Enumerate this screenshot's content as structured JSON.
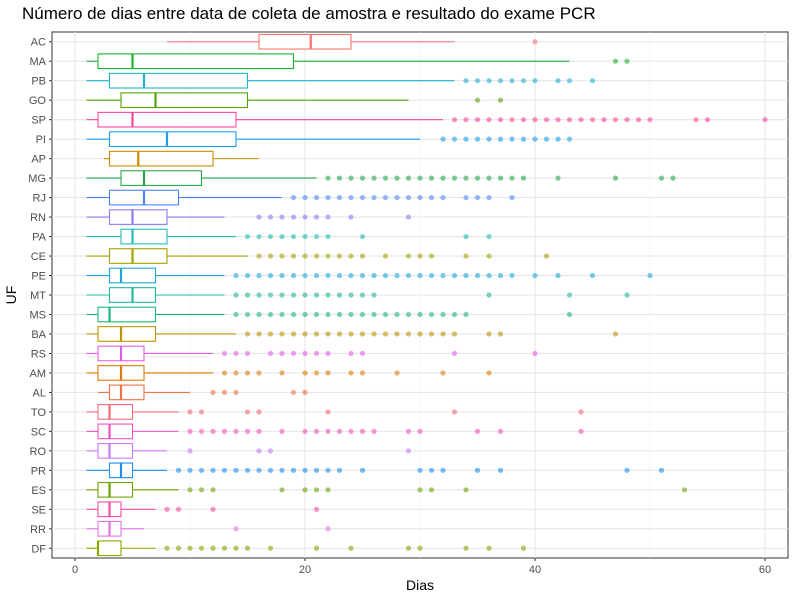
{
  "chart_data": {
    "type": "boxplot",
    "title": "Número de dias entre data de coleta de amostra e resultado do exame PCR",
    "xlabel": "Dias",
    "ylabel": "UF",
    "xlim": [
      -2,
      62
    ],
    "xticks": [
      0,
      20,
      40,
      60
    ],
    "grid": true,
    "legend": "none",
    "categories": [
      "AC",
      "MA",
      "PB",
      "GO",
      "SP",
      "PI",
      "AP",
      "MG",
      "RJ",
      "RN",
      "PA",
      "CE",
      "PE",
      "MT",
      "MS",
      "BA",
      "RS",
      "AM",
      "AL",
      "TO",
      "SC",
      "RO",
      "PR",
      "ES",
      "SE",
      "RR",
      "DF"
    ],
    "series": [
      {
        "uf": "AC",
        "color": "#F8766D",
        "whisker_low": 8,
        "q1": 16,
        "median": 20.5,
        "q3": 24,
        "whisker_high": 33,
        "outliers": [
          40
        ]
      },
      {
        "uf": "MA",
        "color": "#1BB22C",
        "whisker_low": 1,
        "q1": 2,
        "median": 5,
        "q3": 19,
        "whisker_high": 43,
        "outliers": [
          47,
          48
        ]
      },
      {
        "uf": "PB",
        "color": "#1FB3D0",
        "whisker_low": 1,
        "q1": 3,
        "median": 6,
        "q3": 15,
        "whisker_high": 33,
        "outliers": [
          34,
          35,
          36,
          37,
          38,
          39,
          40,
          42,
          43,
          45
        ]
      },
      {
        "uf": "GO",
        "color": "#54A40B",
        "whisker_low": 1,
        "q1": 4,
        "median": 7,
        "q3": 15,
        "whisker_high": 29,
        "outliers": [
          35,
          37
        ]
      },
      {
        "uf": "SP",
        "color": "#F8469D",
        "whisker_low": 1,
        "q1": 2,
        "median": 5,
        "q3": 14,
        "whisker_high": 32,
        "outliers": [
          33,
          34,
          35,
          36,
          37,
          38,
          39,
          40,
          41,
          42,
          43,
          44,
          45,
          46,
          47,
          48,
          49,
          50,
          54,
          55,
          60
        ]
      },
      {
        "uf": "PI",
        "color": "#1E9EEF",
        "whisker_low": 1,
        "q1": 3,
        "median": 8,
        "q3": 14,
        "whisker_high": 30,
        "outliers": [
          32,
          33,
          34,
          35,
          36,
          37,
          38,
          39,
          40,
          41,
          42,
          43
        ]
      },
      {
        "uf": "AP",
        "color": "#CC8A00",
        "whisker_low": 2.5,
        "q1": 3,
        "median": 5.5,
        "q3": 12,
        "whisker_high": 16,
        "outliers": []
      },
      {
        "uf": "MG",
        "color": "#23A94A",
        "whisker_low": 1,
        "q1": 4,
        "median": 6,
        "q3": 11,
        "whisker_high": 21,
        "outliers": [
          22,
          23,
          24,
          25,
          26,
          27,
          28,
          29,
          30,
          31,
          32,
          33,
          34,
          35,
          36,
          37,
          38,
          39,
          42,
          47,
          51,
          52
        ]
      },
      {
        "uf": "RJ",
        "color": "#4C86F6",
        "whisker_low": 1,
        "q1": 3,
        "median": 6,
        "q3": 9,
        "whisker_high": 18,
        "outliers": [
          19,
          20,
          21,
          22,
          23,
          24,
          25,
          26,
          27,
          28,
          29,
          30,
          31,
          32,
          34,
          35,
          36,
          38
        ]
      },
      {
        "uf": "RN",
        "color": "#8E7CF3",
        "whisker_low": 1,
        "q1": 3,
        "median": 5,
        "q3": 8,
        "whisker_high": 13,
        "outliers": [
          16,
          17,
          18,
          19,
          20,
          21,
          22,
          24,
          29
        ]
      },
      {
        "uf": "PA",
        "color": "#1FBEB4",
        "whisker_low": 1,
        "q1": 4,
        "median": 5,
        "q3": 8,
        "whisker_high": 14,
        "outliers": [
          15,
          16,
          17,
          18,
          19,
          20,
          21,
          22,
          25,
          34,
          36
        ]
      },
      {
        "uf": "CE",
        "color": "#A7A200",
        "whisker_low": 1,
        "q1": 3,
        "median": 5,
        "q3": 8,
        "whisker_high": 15,
        "outliers": [
          16,
          17,
          18,
          19,
          20,
          21,
          22,
          23,
          24,
          25,
          27,
          29,
          30,
          31,
          34,
          36,
          41
        ]
      },
      {
        "uf": "PE",
        "color": "#1DA7DF",
        "whisker_low": 1,
        "q1": 3,
        "median": 4,
        "q3": 7,
        "whisker_high": 13,
        "outliers": [
          14,
          15,
          16,
          17,
          18,
          19,
          20,
          21,
          22,
          23,
          24,
          25,
          26,
          27,
          28,
          29,
          30,
          31,
          32,
          33,
          34,
          35,
          36,
          37,
          38,
          40,
          42,
          45,
          50
        ]
      },
      {
        "uf": "MT",
        "color": "#20B89C",
        "whisker_low": 1,
        "q1": 3,
        "median": 5,
        "q3": 7,
        "whisker_high": 13,
        "outliers": [
          14,
          15,
          16,
          17,
          18,
          19,
          20,
          21,
          22,
          23,
          24,
          25,
          26,
          36,
          43,
          48
        ]
      },
      {
        "uf": "MS",
        "color": "#1DB67B",
        "whisker_low": 1,
        "q1": 2,
        "median": 3,
        "q3": 7,
        "whisker_high": 13,
        "outliers": [
          14,
          15,
          16,
          17,
          18,
          19,
          20,
          21,
          22,
          23,
          24,
          25,
          26,
          27,
          28,
          29,
          30,
          31,
          32,
          33,
          34,
          43
        ]
      },
      {
        "uf": "BA",
        "color": "#BB9300",
        "whisker_low": 1,
        "q1": 2,
        "median": 4,
        "q3": 7,
        "whisker_high": 14,
        "outliers": [
          15,
          16,
          17,
          18,
          19,
          20,
          21,
          22,
          23,
          24,
          25,
          26,
          27,
          28,
          29,
          30,
          31,
          32,
          33,
          36,
          37,
          47
        ]
      },
      {
        "uf": "RS",
        "color": "#E35BEA",
        "whisker_low": 1,
        "q1": 2,
        "median": 4,
        "q3": 6,
        "whisker_high": 12,
        "outliers": [
          13,
          14,
          15,
          17,
          18,
          19,
          20,
          21,
          22,
          24,
          25,
          33,
          40
        ]
      },
      {
        "uf": "AM",
        "color": "#E17A05",
        "whisker_low": 1,
        "q1": 2,
        "median": 4,
        "q3": 6,
        "whisker_high": 12,
        "outliers": [
          13,
          14,
          15,
          16,
          18,
          20,
          21,
          22,
          24,
          25,
          28,
          32,
          36
        ]
      },
      {
        "uf": "AL",
        "color": "#ED7244",
        "whisker_low": 2,
        "q1": 3,
        "median": 4,
        "q3": 6,
        "whisker_high": 10,
        "outliers": [
          12,
          13,
          14,
          19,
          20
        ]
      },
      {
        "uf": "TO",
        "color": "#F16B7A",
        "whisker_low": 1,
        "q1": 2,
        "median": 3,
        "q3": 5,
        "whisker_high": 9,
        "outliers": [
          10,
          11,
          15,
          16,
          22,
          33,
          44
        ]
      },
      {
        "uf": "SC",
        "color": "#F552BD",
        "whisker_low": 1,
        "q1": 2,
        "median": 3,
        "q3": 5,
        "whisker_high": 9,
        "outliers": [
          10,
          11,
          12,
          13,
          14,
          15,
          16,
          18,
          20,
          21,
          22,
          23,
          24,
          25,
          26,
          29,
          30,
          35,
          37,
          44
        ]
      },
      {
        "uf": "RO",
        "color": "#C77CFF",
        "whisker_low": 1,
        "q1": 2,
        "median": 3,
        "q3": 5,
        "whisker_high": 8,
        "outliers": [
          10,
          16,
          17,
          29
        ]
      },
      {
        "uf": "PR",
        "color": "#1C8FF0",
        "whisker_low": 1,
        "q1": 3,
        "median": 4,
        "q3": 5,
        "whisker_high": 8,
        "outliers": [
          9,
          10,
          11,
          12,
          13,
          14,
          15,
          16,
          17,
          18,
          19,
          20,
          21,
          22,
          23,
          25,
          30,
          31,
          32,
          35,
          37,
          48,
          51
        ]
      },
      {
        "uf": "ES",
        "color": "#6BA300",
        "whisker_low": 1,
        "q1": 2,
        "median": 3,
        "q3": 5,
        "whisker_high": 9,
        "outliers": [
          10,
          11,
          12,
          18,
          20,
          21,
          22,
          30,
          31,
          34,
          53
        ]
      },
      {
        "uf": "SE",
        "color": "#F64BA3",
        "whisker_low": 1,
        "q1": 2,
        "median": 3,
        "q3": 4,
        "whisker_high": 7,
        "outliers": [
          8,
          9,
          12,
          21
        ]
      },
      {
        "uf": "RR",
        "color": "#E273E6",
        "whisker_low": 1,
        "q1": 2,
        "median": 3,
        "q3": 4,
        "whisker_high": 6,
        "outliers": [
          14,
          22
        ]
      },
      {
        "uf": "DF",
        "color": "#8FA400",
        "whisker_low": 1,
        "q1": 2,
        "median": 2,
        "q3": 4,
        "whisker_high": 7,
        "outliers": [
          8,
          9,
          10,
          11,
          12,
          13,
          14,
          15,
          17,
          21,
          24,
          29,
          30,
          34,
          36,
          39
        ]
      }
    ]
  }
}
